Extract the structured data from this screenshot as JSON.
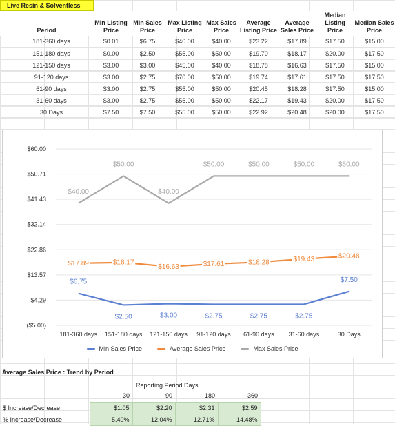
{
  "sheet_title": "Live Resin & Solventless",
  "table": {
    "headers": [
      "Period",
      "Min Listing Price",
      "Min Sales Price",
      "Max Listing Price",
      "Max Sales Price",
      "Average Listing Price",
      "Average Sales Price",
      "Median Listing Price",
      "Median Sales Price"
    ],
    "rows": [
      [
        "181-360 days",
        "$0.01",
        "$6.75",
        "$40.00",
        "$40.00",
        "$23.22",
        "$17.89",
        "$17.50",
        "$15.00"
      ],
      [
        "151-180 days",
        "$0.00",
        "$2.50",
        "$55.00",
        "$50.00",
        "$19.70",
        "$18.17",
        "$20.00",
        "$17.50"
      ],
      [
        "121-150 days",
        "$3.00",
        "$3.00",
        "$45.00",
        "$40.00",
        "$18.78",
        "$16.63",
        "$17.50",
        "$15.00"
      ],
      [
        "91-120 days",
        "$3.00",
        "$2.75",
        "$70.00",
        "$50.00",
        "$19.74",
        "$17.61",
        "$17.50",
        "$17.50"
      ],
      [
        "61-90 days",
        "$3.00",
        "$2.75",
        "$55.00",
        "$50.00",
        "$20.45",
        "$18.28",
        "$17.50",
        "$15.00"
      ],
      [
        "31-60 days",
        "$3.00",
        "$2.75",
        "$55.00",
        "$50.00",
        "$22.17",
        "$19.43",
        "$20.00",
        "$17.50"
      ],
      [
        "30 Days",
        "$7.50",
        "$7.50",
        "$55.00",
        "$50.00",
        "$22.92",
        "$20.48",
        "$20.00",
        "$17.50"
      ]
    ]
  },
  "chart_data": {
    "type": "line",
    "categories": [
      "181-360 days",
      "151-180 days",
      "121-150 days",
      "91-120 days",
      "61-90 days",
      "31-60 days",
      "30 Days"
    ],
    "y_ticks": [
      "$60.00",
      "$50.71",
      "$41.43",
      "$32.14",
      "$22.86",
      "$13.57",
      "$4.29",
      "($5.00)"
    ],
    "ylim": [
      -5.0,
      60.0
    ],
    "grid": true,
    "legend_position": "bottom",
    "series": [
      {
        "name": "Min Sales Price",
        "color": "#5b7fd1",
        "values": [
          6.75,
          2.5,
          3.0,
          2.75,
          2.75,
          2.75,
          7.5
        ],
        "labels": [
          "$6.75",
          "$2.50",
          "$3.00",
          "$2.75",
          "$2.75",
          "$2.75",
          "$7.50"
        ],
        "label_side": [
          "above",
          "below",
          "below",
          "below",
          "below",
          "below",
          "above"
        ]
      },
      {
        "name": "Average Sales Price",
        "color": "#ef8a3c",
        "values": [
          17.89,
          18.17,
          16.63,
          17.61,
          18.28,
          19.43,
          20.48
        ],
        "labels": [
          "$17.89",
          "$18.17",
          "$16.63",
          "$17.61",
          "$18.28",
          "$19.43",
          "$20.48"
        ],
        "label_side": [
          "center",
          "center",
          "center",
          "center",
          "center",
          "center",
          "center"
        ]
      },
      {
        "name": "Max Sales Price",
        "color": "#a9a9a9",
        "values": [
          40.0,
          50.0,
          40.0,
          50.0,
          50.0,
          50.0,
          50.0
        ],
        "labels": [
          "$40.00",
          "$50.00",
          "$40.00",
          "$50.00",
          "$50.00",
          "$50.00",
          "$50.00"
        ],
        "label_side": [
          "above",
          "above",
          "above",
          "above",
          "above",
          "above",
          "above"
        ]
      }
    ]
  },
  "trend": {
    "title": "Average Sales Price : Trend by Period",
    "subtitle": "Reporting Period Days",
    "columns": [
      "30",
      "90",
      "180",
      "360"
    ],
    "rows": [
      {
        "label": "$ Increase/Decrease",
        "values": [
          "$1.05",
          "$2.20",
          "$2.31",
          "$2.59"
        ]
      },
      {
        "label": "% Increase/Decrease",
        "values": [
          "5.40%",
          "12.04%",
          "12.71%",
          "14.48%"
        ]
      }
    ]
  }
}
